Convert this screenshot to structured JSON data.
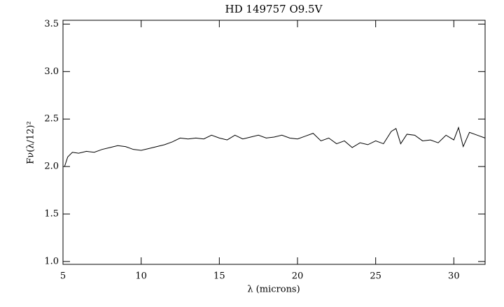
{
  "chart_data": {
    "type": "line",
    "title": "HD 149757 O9.5V",
    "x_label": "λ (microns)",
    "y_label": "Fν(λ/12)²",
    "xlim": [
      5,
      32
    ],
    "ylim": [
      0.97,
      3.54
    ],
    "xticks": [
      5,
      10,
      15,
      20,
      25,
      30
    ],
    "yticks": [
      {
        "value": 1.0,
        "label": "1.0"
      },
      {
        "value": 1.5,
        "label": "1.5"
      },
      {
        "value": 2.0,
        "label": "2.0"
      },
      {
        "value": 2.5,
        "label": "2.5"
      },
      {
        "value": 3.0,
        "label": "3.0"
      },
      {
        "value": 3.5,
        "label": "3.5"
      }
    ],
    "grid": false,
    "x": [
      5.1,
      5.3,
      5.6,
      6.0,
      6.5,
      7.0,
      7.5,
      8.0,
      8.5,
      9.0,
      9.5,
      10.0,
      10.5,
      11.0,
      11.5,
      12.0,
      12.5,
      13.0,
      13.5,
      14.0,
      14.5,
      15.0,
      15.5,
      16.0,
      16.5,
      17.0,
      17.5,
      18.0,
      18.5,
      19.0,
      19.5,
      20.0,
      20.5,
      21.0,
      21.5,
      22.0,
      22.5,
      23.0,
      23.5,
      24.0,
      24.5,
      25.0,
      25.5,
      26.0,
      26.3,
      26.6,
      27.0,
      27.5,
      28.0,
      28.5,
      29.0,
      29.5,
      30.0,
      30.3,
      30.6,
      31.0,
      31.5,
      32.0
    ],
    "series": [
      {
        "color": "#000000",
        "values": [
          2.0,
          2.1,
          2.15,
          2.14,
          2.16,
          2.15,
          2.18,
          2.2,
          2.22,
          2.21,
          2.18,
          2.17,
          2.19,
          2.21,
          2.23,
          2.26,
          2.3,
          2.29,
          2.3,
          2.29,
          2.33,
          2.3,
          2.28,
          2.33,
          2.29,
          2.31,
          2.33,
          2.3,
          2.31,
          2.33,
          2.3,
          2.29,
          2.32,
          2.35,
          2.27,
          2.3,
          2.24,
          2.27,
          2.2,
          2.25,
          2.23,
          2.27,
          2.24,
          2.37,
          2.4,
          2.24,
          2.34,
          2.33,
          2.27,
          2.28,
          2.25,
          2.33,
          2.28,
          2.41,
          2.21,
          2.36,
          2.33,
          2.3
        ]
      }
    ]
  }
}
